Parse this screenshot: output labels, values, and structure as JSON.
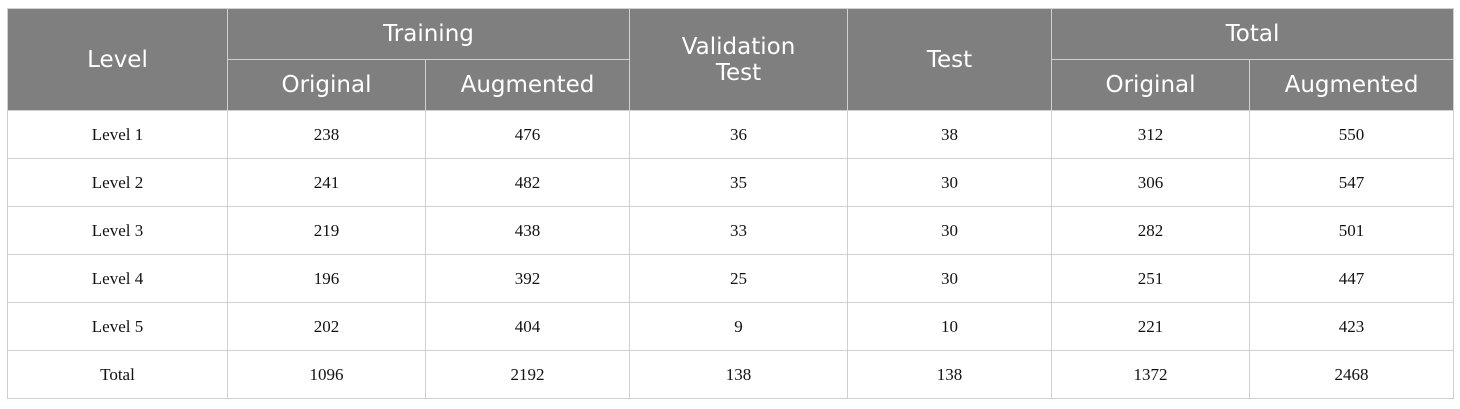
{
  "table": {
    "header": {
      "level": "Level",
      "training": "Training",
      "validation": "Validation Test",
      "test": "Test",
      "total": "Total",
      "sub": [
        "Original",
        "Augmented",
        "Original",
        "Augmented"
      ]
    },
    "rows": [
      [
        "Level 1",
        238,
        476,
        36,
        38,
        312,
        550
      ],
      [
        "Level 2",
        241,
        482,
        35,
        30,
        306,
        547
      ],
      [
        "Level 3",
        219,
        438,
        33,
        30,
        282,
        501
      ],
      [
        "Level 4",
        196,
        392,
        25,
        30,
        251,
        447
      ],
      [
        "Level 5",
        202,
        404,
        9,
        10,
        221,
        423
      ],
      [
        "Total",
        1096,
        2192,
        138,
        138,
        1372,
        2468
      ]
    ]
  }
}
